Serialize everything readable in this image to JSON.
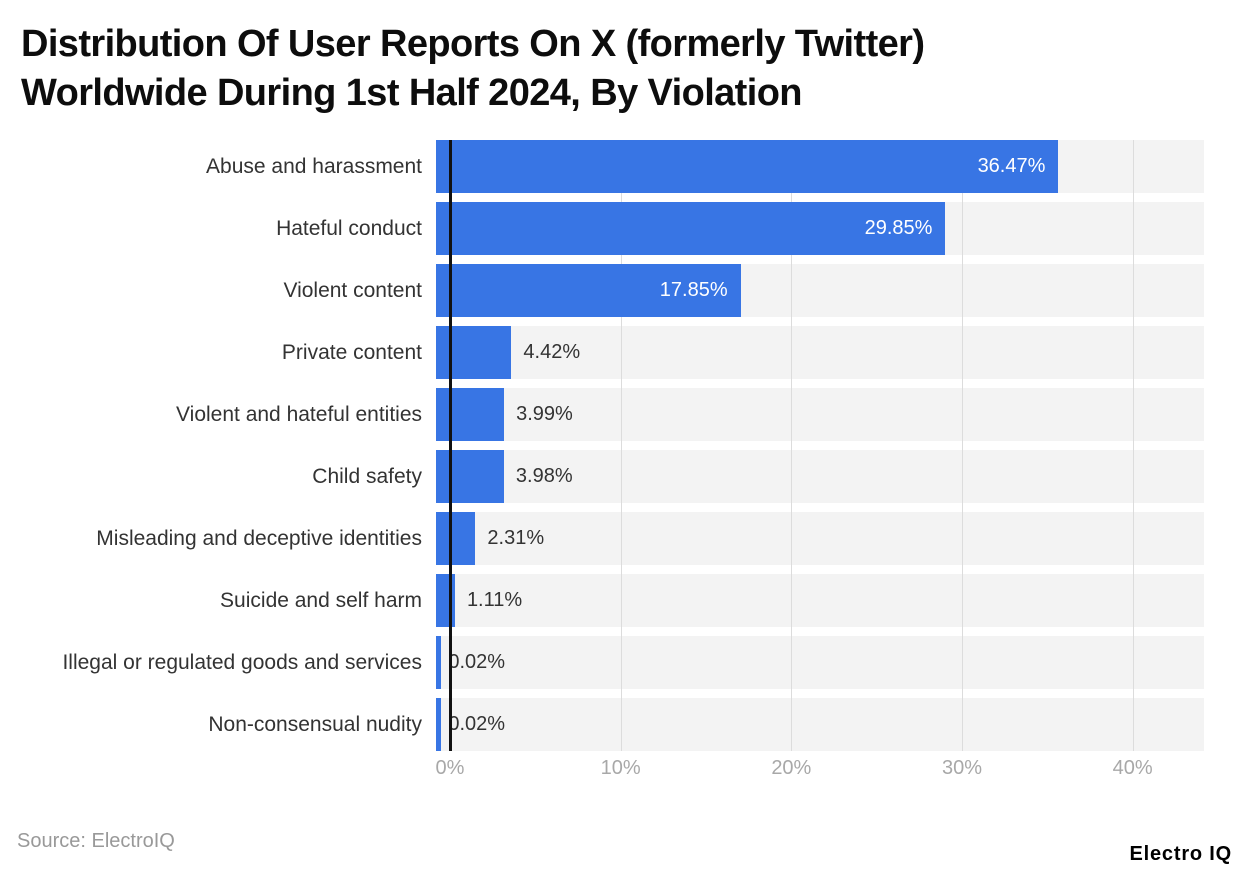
{
  "title": {
    "lines": [
      "Distribution Of User Reports On X (formerly Twitter)",
      "Worldwide During 1st Half 2024, By Violation"
    ]
  },
  "chart_data": {
    "type": "bar",
    "orientation": "horizontal",
    "title": "Distribution Of User Reports On X (formerly Twitter) Worldwide During 1st Half 2024, By Violation",
    "categories": [
      "Abuse and harassment",
      "Hateful conduct",
      "Violent content",
      "Private content",
      "Violent and hateful entities",
      "Child safety",
      "Misleading and deceptive identities",
      "Suicide and self harm",
      "Illegal or regulated goods and services",
      "Non-consensual nudity"
    ],
    "values": [
      36.47,
      29.85,
      17.85,
      4.42,
      3.99,
      3.98,
      2.31,
      1.11,
      0.02,
      0.02
    ],
    "value_labels": [
      "36.47%",
      "29.85%",
      "17.85%",
      "4.42%",
      "3.99%",
      "3.98%",
      "2.31%",
      "1.11%",
      "0.02%",
      "0.02%"
    ],
    "xlabel": "",
    "ylabel": "",
    "xlim": [
      0,
      45
    ],
    "x_ticks": [
      {
        "value": 0,
        "label": "0%"
      },
      {
        "value": 10,
        "label": "10%"
      },
      {
        "value": 20,
        "label": "20%"
      },
      {
        "value": 30,
        "label": "30%"
      },
      {
        "value": 40,
        "label": "40%"
      }
    ],
    "grid": true,
    "legend": "none",
    "label_inside_threshold": 10,
    "colors": {
      "bar": "#3875e4",
      "track": "#f3f3f3",
      "gridline": "#dcdcdc",
      "axis_line": "#111111",
      "category_label": "#333333",
      "value_label_inside": "#ffffff",
      "value_label_outside": "#333333",
      "tick_label": "#a8a8a8",
      "title": "#0d0d0d"
    }
  },
  "footer": {
    "source": "Source: ElectroIQ",
    "logo": "Electro IQ"
  }
}
